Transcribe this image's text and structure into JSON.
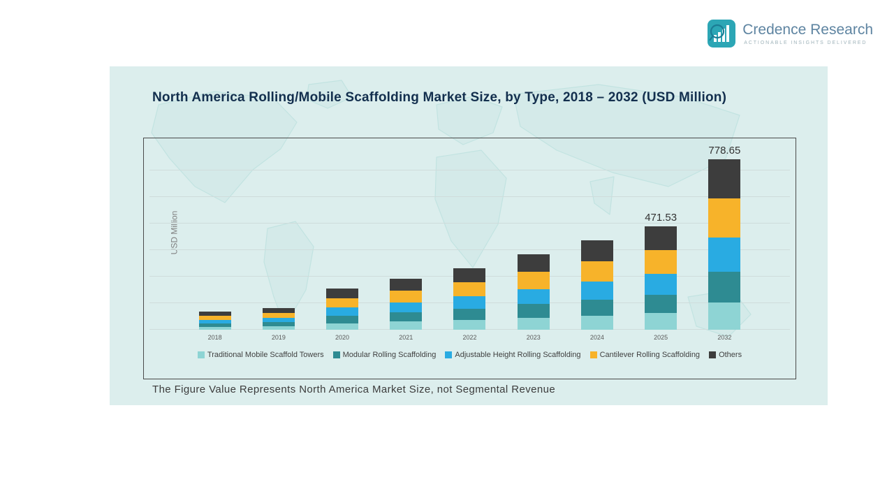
{
  "logo": {
    "name": "Credence Research",
    "tagline": "Actionable Insights Delivered",
    "icon": "bar-chart-magnifier-icon",
    "accent_color": "#2ca6b5"
  },
  "title": "North America Rolling/Mobile Scaffolding Market Size, by Type, 2018 – 2032 (USD Million)",
  "note": "The Figure Value Represents North America Market Size, not Segmental Revenue",
  "panel_background": "#dceeed",
  "chart_data": {
    "type": "bar",
    "stacked": true,
    "title": "North America Rolling/Mobile Scaffolding Market Size, by Type, 2018 – 2032 (USD Million)",
    "xlabel": "",
    "ylabel": "USD Million",
    "categories": [
      "2018",
      "2019",
      "2020",
      "2021",
      "2022",
      "2023",
      "2024",
      "2025",
      "2032"
    ],
    "series": [
      {
        "name": "Traditional Mobile Scaffold Towers",
        "color": "#8ed4d4",
        "values": [
          13,
          16,
          30,
          37,
          45,
          55,
          65,
          75.4,
          124.6
        ]
      },
      {
        "name": "Modular Rolling Scaffolding",
        "color": "#2e8b92",
        "values": [
          15,
          18,
          34,
          42,
          51,
          62,
          73,
          84.9,
          140.2
        ]
      },
      {
        "name": "Adjustable Height Rolling Scaffolding",
        "color": "#29abe2",
        "values": [
          17,
          20,
          38,
          46,
          56,
          69,
          82,
          94.3,
          155.7
        ]
      },
      {
        "name": "Cantilever Rolling Scaffolding",
        "color": "#f7b32a",
        "values": [
          19,
          22,
          43,
          53,
          65,
          80,
          94,
          108.5,
          179.1
        ]
      },
      {
        "name": "Others",
        "color": "#3d3d3d",
        "values": [
          19,
          22,
          43,
          54,
          64,
          81,
          94,
          108.43,
          179.05
        ]
      }
    ],
    "totals_labeled": {
      "2025": 471.53,
      "2032": 778.65
    },
    "annotations": [
      {
        "category": "2025",
        "label": "471.53"
      },
      {
        "category": "2032",
        "label": "778.65"
      }
    ],
    "ylim": [
      0,
      850
    ],
    "grid": "horizontal",
    "legend_position": "bottom"
  }
}
